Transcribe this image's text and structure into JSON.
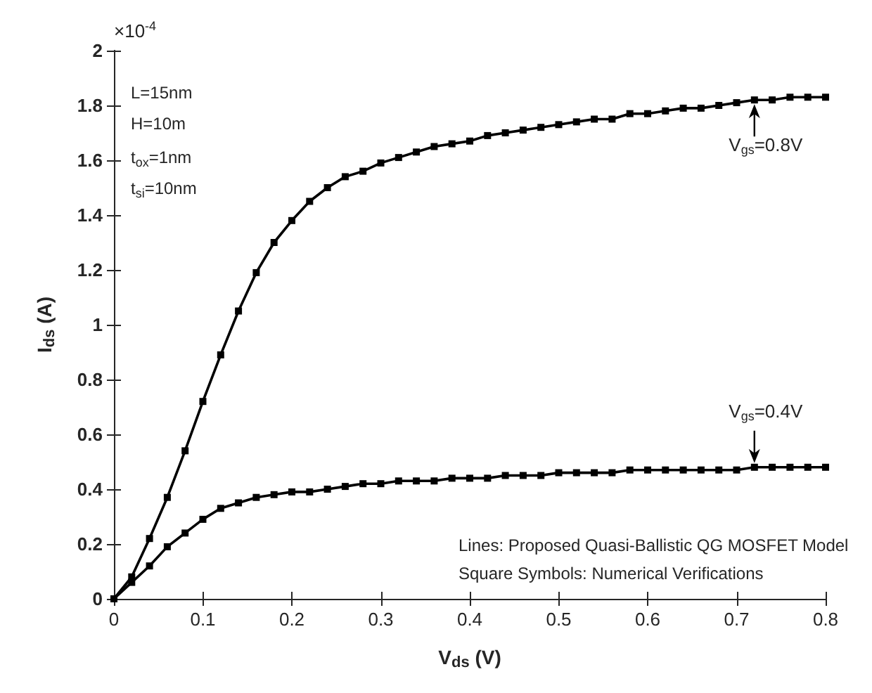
{
  "chart_data": {
    "type": "line",
    "xlabel": "V$_{ds}$ (V)",
    "ylabel": "I$_{ds}$ (A)",
    "x": [
      0,
      0.02,
      0.04,
      0.06,
      0.08,
      0.1,
      0.12,
      0.14,
      0.16,
      0.18,
      0.2,
      0.22,
      0.24,
      0.26,
      0.28,
      0.3,
      0.32,
      0.34,
      0.36,
      0.38,
      0.4,
      0.42,
      0.44,
      0.46,
      0.48,
      0.5,
      0.52,
      0.54,
      0.56,
      0.58,
      0.6,
      0.62,
      0.64,
      0.66,
      0.68,
      0.7,
      0.72,
      0.74,
      0.76,
      0.78,
      0.8
    ],
    "series": [
      {
        "color": "#000000",
        "values": [
          0,
          0.08,
          0.22,
          0.37,
          0.54,
          0.72,
          0.89,
          1.05,
          1.19,
          1.3,
          1.38,
          1.45,
          1.5,
          1.54,
          1.56,
          1.59,
          1.61,
          1.63,
          1.65,
          1.66,
          1.67,
          1.69,
          1.7,
          1.71,
          1.72,
          1.73,
          1.74,
          1.75,
          1.75,
          1.77,
          1.77,
          1.78,
          1.79,
          1.79,
          1.8,
          1.81,
          1.82,
          1.82,
          1.83,
          1.83,
          1.83
        ]
      },
      {
        "color": "#000000",
        "values": [
          0,
          0.06,
          0.12,
          0.19,
          0.24,
          0.29,
          0.33,
          0.35,
          0.37,
          0.38,
          0.39,
          0.39,
          0.4,
          0.41,
          0.42,
          0.42,
          0.43,
          0.43,
          0.43,
          0.44,
          0.44,
          0.44,
          0.45,
          0.45,
          0.45,
          0.46,
          0.46,
          0.46,
          0.46,
          0.47,
          0.47,
          0.47,
          0.47,
          0.47,
          0.47,
          0.47,
          0.48,
          0.48,
          0.48,
          0.48,
          0.48
        ]
      }
    ],
    "xlim": [
      0,
      0.8
    ],
    "xticks": [
      0,
      0.1,
      0.2,
      0.3,
      0.4,
      0.5,
      0.6,
      0.7,
      0.8
    ],
    "ylim": [
      0,
      2
    ],
    "yticks": [
      0,
      0.2,
      0.4,
      0.6,
      0.8,
      1,
      1.2,
      1.4,
      1.6,
      1.8,
      2
    ],
    "marker": "square",
    "line_style": "solid",
    "grid": false,
    "annotations": [
      "×10$^{-4}$",
      "L=15nm",
      "H=10m",
      "t$_{ox}$=1nm",
      "t$_{si}$=10nm",
      "Lines: Proposed Quasi-Ballistic QG MOSFET Model",
      "Square Symbols: Numerical Verifications",
      {
        "text": "V$_{gs}$=0.8V",
        "x": 0.72,
        "y": 1.82
      },
      {
        "text": "V$_{gs}$=0.4V",
        "x": 0.72,
        "y": 0.48
      }
    ]
  }
}
